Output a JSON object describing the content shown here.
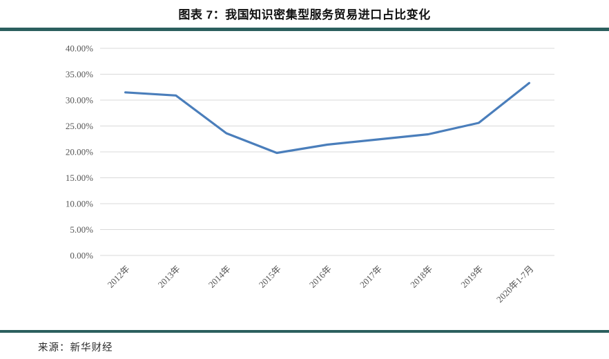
{
  "header": {
    "title": "图表 7：我国知识密集型服务贸易进口占比变化"
  },
  "footer": {
    "source": "来源：新华财经"
  },
  "colors": {
    "line": "#4a7ebb",
    "divider": "#2b5f5e",
    "gridline": "#d9d9d9",
    "axis_text": "#555555",
    "background": "#ffffff"
  },
  "chart_data": {
    "type": "line",
    "title": "图表 7：我国知识密集型服务贸易进口占比变化",
    "categories": [
      "2012年",
      "2013年",
      "2014年",
      "2015年",
      "2016年",
      "2017年",
      "2018年",
      "2019年",
      "2020年1-7月"
    ],
    "values": [
      31.5,
      30.9,
      23.6,
      19.8,
      21.4,
      22.4,
      23.4,
      25.6,
      33.3
    ],
    "unit": "%",
    "xlabel": "",
    "ylabel": "",
    "ylim": [
      0,
      40
    ],
    "ytick_step": 5,
    "ytick_labels": [
      "0.00%",
      "5.00%",
      "10.00%",
      "15.00%",
      "20.00%",
      "25.00%",
      "30.00%",
      "35.00%",
      "40.00%"
    ],
    "grid": true,
    "legend_position": "none",
    "x_label_rotation_deg": 45,
    "source": "来源：新华财经"
  }
}
